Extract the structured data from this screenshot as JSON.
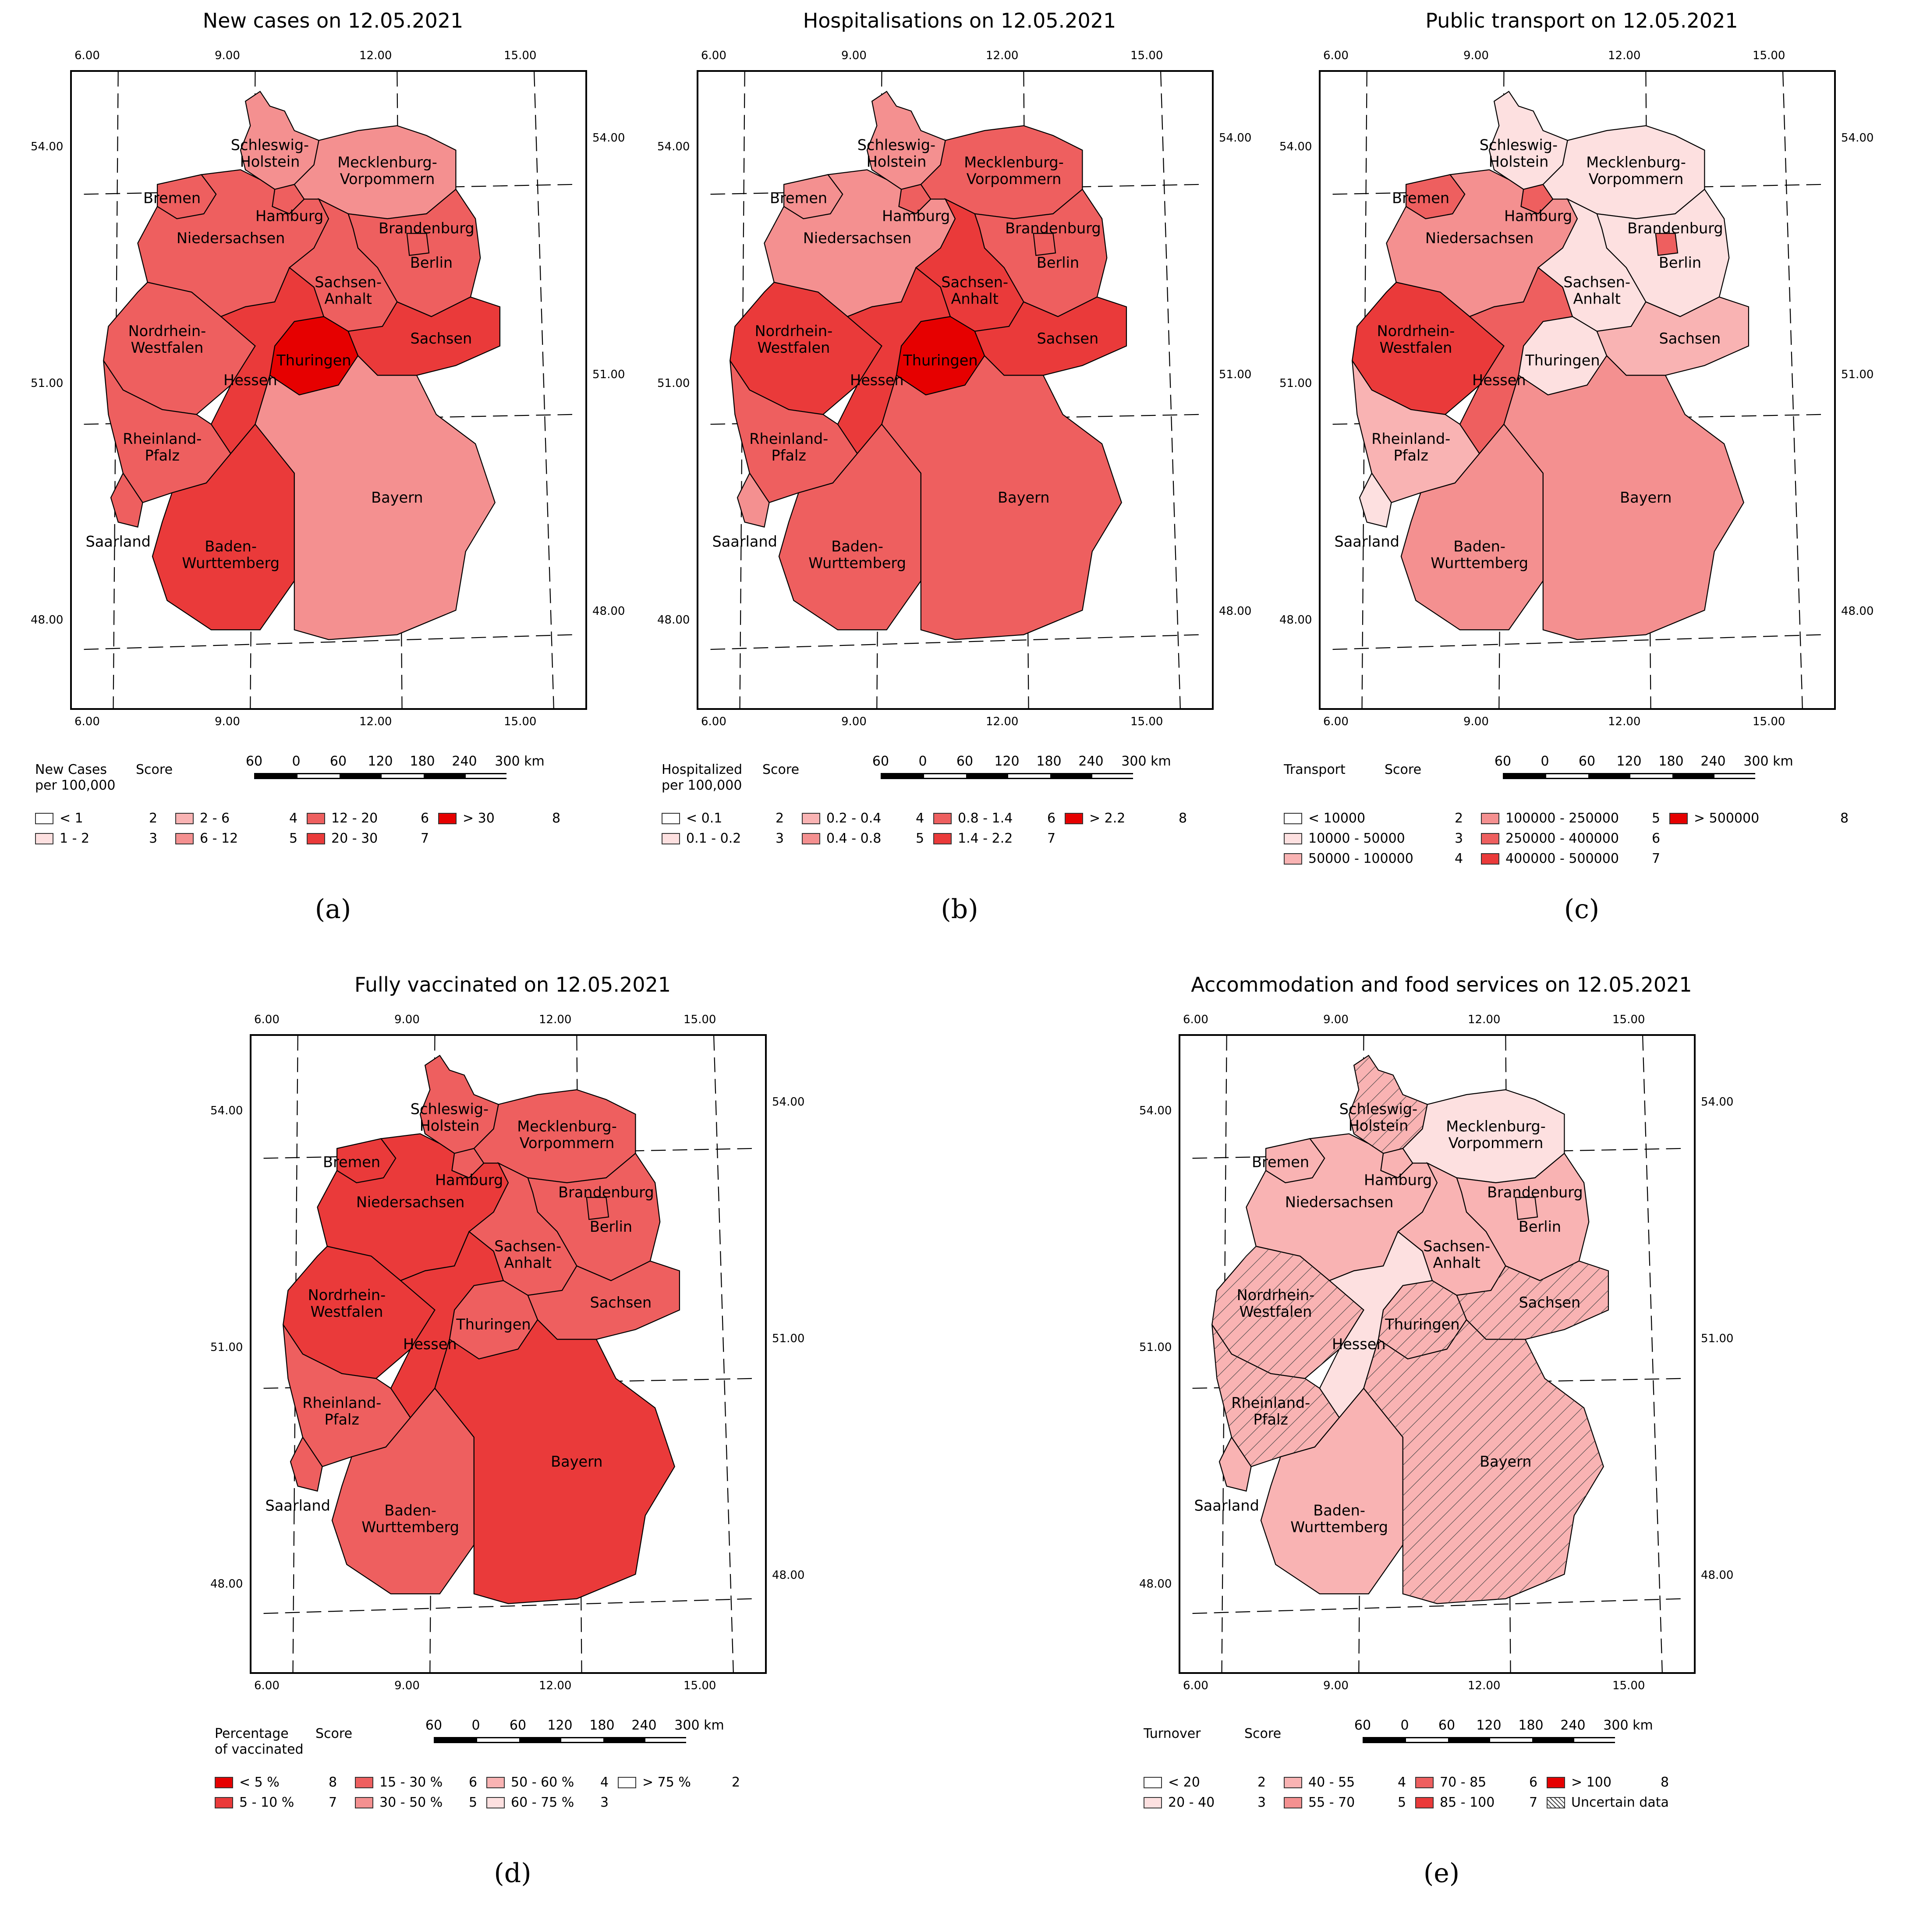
{
  "colors": {
    "s1": "#ffffff",
    "s2": "#ffffff",
    "s3": "#fde0e0",
    "s4": "#f9b3b3",
    "s5": "#f49090",
    "s6": "#ee5f5f",
    "s7": "#ea3a3a",
    "s8": "#e60000"
  },
  "ticks": {
    "lon": [
      "6.00",
      "9.00",
      "12.00",
      "15.00"
    ],
    "lat": [
      "54.00",
      "51.00",
      "48.00"
    ]
  },
  "scale": [
    "60",
    "0",
    "60",
    "120",
    "180",
    "240",
    "300 km"
  ],
  "state_labels": {
    "sh": [
      "Schleswig-",
      "Holstein"
    ],
    "mv": [
      "Mecklenburg-",
      "Vorpommern"
    ],
    "hb": [
      "Bremen"
    ],
    "hh": [
      "Hamburg"
    ],
    "bb": [
      "Brandenburg"
    ],
    "be": [
      "Berlin"
    ],
    "ni": [
      "Niedersachsen"
    ],
    "st": [
      "Sachsen-",
      "Anhalt"
    ],
    "nw": [
      "Nordrhein-",
      "Westfalen"
    ],
    "sn": [
      "Sachsen"
    ],
    "th": [
      "Thuringen"
    ],
    "he": [
      "Hessen"
    ],
    "rp": [
      "Rheinland-",
      "Pfalz"
    ],
    "sl": [
      "Saarland"
    ],
    "by": [
      "Bayern"
    ],
    "bw": [
      "Baden-",
      "Wurttemberg"
    ]
  },
  "panels": [
    {
      "letter": "(a)",
      "title": "New cases on 12.05.2021",
      "scores": {
        "sh": 5,
        "mv": 5,
        "hb": 6,
        "hh": 6,
        "bb": 6,
        "be": 6,
        "ni": 6,
        "st": 6,
        "nw": 6,
        "sn": 7,
        "th": 8,
        "he": 7,
        "rp": 6,
        "sl": 6,
        "by": 5,
        "bw": 7
      },
      "hatched": [],
      "legend": {
        "header": [
          "New Cases",
          "per 100,000"
        ],
        "score_header": "Score",
        "items": [
          {
            "label": "< 1",
            "score": "2",
            "s": "s1"
          },
          {
            "label": "1 - 2",
            "score": "3",
            "s": "s3"
          },
          {
            "label": "2 - 6",
            "score": "4",
            "s": "s4"
          },
          {
            "label": "6 - 12",
            "score": "5",
            "s": "s5"
          },
          {
            "label": "12 - 20",
            "score": "6",
            "s": "s6"
          },
          {
            "label": "20 - 30",
            "score": "7",
            "s": "s7"
          },
          {
            "label": "> 30",
            "score": "8",
            "s": "s8"
          }
        ]
      }
    },
    {
      "letter": "(b)",
      "title": "Hospitalisations on 12.05.2021",
      "scores": {
        "sh": 5,
        "mv": 6,
        "hb": 5,
        "hh": 6,
        "bb": 6,
        "be": 6,
        "ni": 5,
        "st": 7,
        "nw": 7,
        "sn": 7,
        "th": 8,
        "he": 7,
        "rp": 6,
        "sl": 5,
        "by": 6,
        "bw": 6
      },
      "hatched": [],
      "legend": {
        "header": [
          "Hospitalized",
          "per 100,000"
        ],
        "score_header": "Score",
        "items": [
          {
            "label": "< 0.1",
            "score": "2",
            "s": "s1"
          },
          {
            "label": "0.1 - 0.2",
            "score": "3",
            "s": "s3"
          },
          {
            "label": "0.2 - 0.4",
            "score": "4",
            "s": "s4"
          },
          {
            "label": "0.4 - 0.8",
            "score": "5",
            "s": "s5"
          },
          {
            "label": "0.8 - 1.4",
            "score": "6",
            "s": "s6"
          },
          {
            "label": "1.4 - 2.2",
            "score": "7",
            "s": "s7"
          },
          {
            "label": "> 2.2",
            "score": "8",
            "s": "s8"
          }
        ]
      }
    },
    {
      "letter": "(c)",
      "title": "Public transport on 12.05.2021",
      "scores": {
        "sh": 3,
        "mv": 3,
        "hb": 6,
        "hh": 6,
        "bb": 3,
        "be": 6,
        "ni": 5,
        "st": 3,
        "nw": 7,
        "sn": 4,
        "th": 3,
        "he": 6,
        "rp": 4,
        "sl": 3,
        "by": 5,
        "bw": 5
      },
      "hatched": [],
      "legend": {
        "header": [
          "Transport"
        ],
        "score_header": "Score",
        "items": [
          {
            "label": "< 10000",
            "score": "2",
            "s": "s1"
          },
          {
            "label": "10000 - 50000",
            "score": "3",
            "s": "s3"
          },
          {
            "label": "50000 - 100000",
            "score": "4",
            "s": "s4"
          },
          {
            "label": "100000 - 250000",
            "score": "5",
            "s": "s5"
          },
          {
            "label": "250000 - 400000",
            "score": "6",
            "s": "s6"
          },
          {
            "label": "400000 - 500000",
            "score": "7",
            "s": "s7"
          },
          {
            "label": "> 500000",
            "score": "8",
            "s": "s8"
          }
        ]
      }
    },
    {
      "letter": "(d)",
      "title": "Fully vaccinated on 12.05.2021",
      "scores": {
        "sh": 6,
        "mv": 6,
        "hb": 7,
        "hh": 6,
        "bb": 6,
        "be": 6,
        "ni": 7,
        "st": 6,
        "nw": 7,
        "sn": 6,
        "th": 6,
        "he": 7,
        "rp": 6,
        "sl": 6,
        "by": 7,
        "bw": 6
      },
      "hatched": [],
      "legend": {
        "header": [
          "Percentage",
          "of vaccinated"
        ],
        "score_header": "Score",
        "items": [
          {
            "label": "< 5 %",
            "score": "8",
            "s": "s8"
          },
          {
            "label": "5 - 10 %",
            "score": "7",
            "s": "s7"
          },
          {
            "label": "15 - 30 %",
            "score": "6",
            "s": "s6"
          },
          {
            "label": "30 - 50 %",
            "score": "5",
            "s": "s5"
          },
          {
            "label": "50 - 60 %",
            "score": "4",
            "s": "s4"
          },
          {
            "label": "60 - 75 %",
            "score": "3",
            "s": "s3"
          },
          {
            "label": "> 75 %",
            "score": "2",
            "s": "s1"
          }
        ]
      }
    },
    {
      "letter": "(e)",
      "title": "Accommodation and food services on 12.05.2021",
      "scores": {
        "sh": 4,
        "mv": 3,
        "hb": 4,
        "hh": 4,
        "bb": 4,
        "be": 4,
        "ni": 4,
        "st": 4,
        "nw": 4,
        "sn": 4,
        "th": 4,
        "he": 3,
        "rp": 4,
        "sl": 4,
        "by": 4,
        "bw": 4
      },
      "hatched": [
        "sh",
        "nw",
        "rp",
        "th",
        "sn",
        "by"
      ],
      "legend": {
        "header": [
          "Turnover"
        ],
        "score_header": "Score",
        "items": [
          {
            "label": "< 20",
            "score": "2",
            "s": "s1"
          },
          {
            "label": "20 - 40",
            "score": "3",
            "s": "s3"
          },
          {
            "label": "40 - 55",
            "score": "4",
            "s": "s4"
          },
          {
            "label": "55 - 70",
            "score": "5",
            "s": "s5"
          },
          {
            "label": "70 - 85",
            "score": "6",
            "s": "s6"
          },
          {
            "label": "85 - 100",
            "score": "7",
            "s": "s7"
          },
          {
            "label": "> 100",
            "score": "8",
            "s": "s8"
          }
        ],
        "uncertain": "Uncertain data"
      }
    }
  ]
}
